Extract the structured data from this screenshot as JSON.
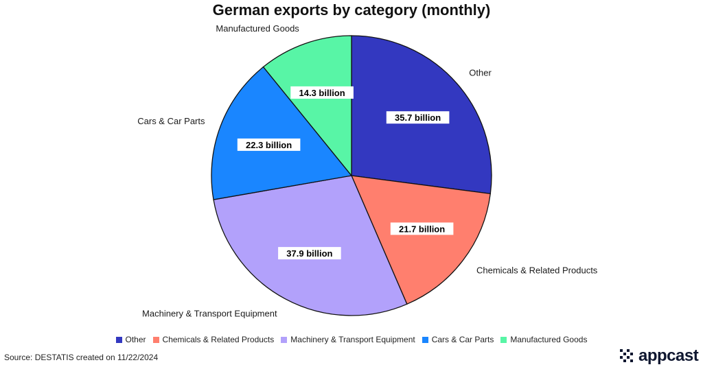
{
  "chart_data": {
    "type": "pie",
    "title": "German exports by category (monthly)",
    "slices": [
      {
        "label": "Other",
        "value": 35.7,
        "value_label": "35.7 billion",
        "color": "#3338c0"
      },
      {
        "label": "Chemicals & Related Products",
        "value": 21.7,
        "value_label": "21.7 billion",
        "color": "#ff7f6e"
      },
      {
        "label": "Machinery & Transport Equipment",
        "value": 37.9,
        "value_label": "37.9 billion",
        "color": "#b2a1fb"
      },
      {
        "label": "Cars & Car Parts",
        "value": 22.3,
        "value_label": "22.3 billion",
        "color": "#1a86ff"
      },
      {
        "label": "Manufactured Goods",
        "value": 14.3,
        "value_label": "14.3 billion",
        "color": "#58f5a6"
      }
    ],
    "legend_placement": "bottom",
    "start_angle": "12 o'clock",
    "direction": "clockwise"
  },
  "footer": {
    "source": "Source: DESTATIS created on 11/22/2024",
    "logo_text": "appcast"
  }
}
